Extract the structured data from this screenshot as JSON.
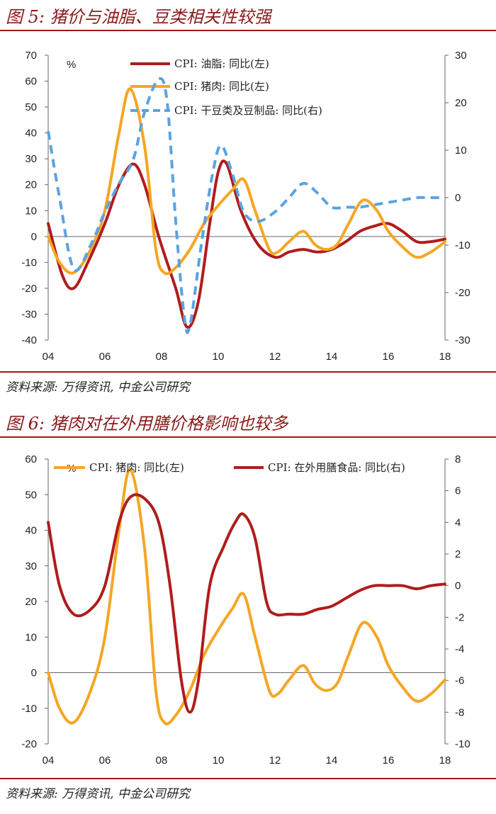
{
  "figures": [
    {
      "title": "图 5: 猪价与油脂、豆类相关性较强",
      "source": "资料来源: 万得资讯, 中金公司研究"
    },
    {
      "title": "图 6: 猪肉对在外用膳价格影响也较多",
      "source": "资料来源: 万得资讯, 中金公司研究"
    }
  ],
  "chart_data": [
    {
      "type": "line",
      "title": "",
      "unit_label": "%",
      "x_ticks": [
        "04",
        "06",
        "08",
        "10",
        "12",
        "14",
        "16",
        "18"
      ],
      "x_range": [
        2004,
        2018
      ],
      "y_left": {
        "range": [
          -40,
          70
        ],
        "ticks": [
          -40,
          -30,
          -20,
          -10,
          0,
          10,
          20,
          30,
          40,
          50,
          60,
          70
        ]
      },
      "y_right": {
        "range": [
          -30,
          30
        ],
        "ticks": [
          -30,
          -20,
          -10,
          0,
          10,
          20,
          30
        ]
      },
      "grid": false,
      "legend_position": "top-center",
      "series": [
        {
          "name": "CPI: 油脂: 同比(左)",
          "axis": "left",
          "color": "#b01c1c",
          "style": "solid",
          "points": [
            [
              2004.0,
              5
            ],
            [
              2004.5,
              -15
            ],
            [
              2004.9,
              -20
            ],
            [
              2005.4,
              -10
            ],
            [
              2006.0,
              5
            ],
            [
              2006.5,
              20
            ],
            [
              2007.0,
              28
            ],
            [
              2007.4,
              20
            ],
            [
              2007.9,
              0
            ],
            [
              2008.5,
              -20
            ],
            [
              2008.9,
              -35
            ],
            [
              2009.3,
              -25
            ],
            [
              2009.7,
              5
            ],
            [
              2010.0,
              25
            ],
            [
              2010.3,
              28
            ],
            [
              2010.8,
              10
            ],
            [
              2011.4,
              -3
            ],
            [
              2012.0,
              -8
            ],
            [
              2012.5,
              -6
            ],
            [
              2013.0,
              -5
            ],
            [
              2013.5,
              -6
            ],
            [
              2014.0,
              -5
            ],
            [
              2014.5,
              -2
            ],
            [
              2015.0,
              2
            ],
            [
              2015.5,
              4
            ],
            [
              2016.0,
              5
            ],
            [
              2016.5,
              2
            ],
            [
              2017.0,
              -2
            ],
            [
              2017.5,
              -2
            ],
            [
              2018.0,
              -1
            ]
          ]
        },
        {
          "name": "CPI: 猪肉: 同比(左)",
          "axis": "left",
          "color": "#f5a623",
          "style": "solid",
          "points": [
            [
              2004.0,
              0
            ],
            [
              2004.4,
              -10
            ],
            [
              2004.9,
              -14
            ],
            [
              2005.5,
              -5
            ],
            [
              2006.0,
              10
            ],
            [
              2006.5,
              40
            ],
            [
              2006.9,
              57
            ],
            [
              2007.4,
              35
            ],
            [
              2007.8,
              -5
            ],
            [
              2008.1,
              -14
            ],
            [
              2008.5,
              -12
            ],
            [
              2009.0,
              -5
            ],
            [
              2009.5,
              5
            ],
            [
              2010.0,
              12
            ],
            [
              2010.5,
              18
            ],
            [
              2010.9,
              22
            ],
            [
              2011.3,
              10
            ],
            [
              2011.8,
              -5
            ],
            [
              2012.1,
              -6
            ],
            [
              2012.5,
              -2
            ],
            [
              2013.0,
              2
            ],
            [
              2013.4,
              -3
            ],
            [
              2013.8,
              -5
            ],
            [
              2014.2,
              -3
            ],
            [
              2014.6,
              5
            ],
            [
              2015.1,
              14
            ],
            [
              2015.6,
              10
            ],
            [
              2016.0,
              2
            ],
            [
              2016.5,
              -4
            ],
            [
              2017.0,
              -8
            ],
            [
              2017.5,
              -6
            ],
            [
              2018.0,
              -2
            ]
          ]
        },
        {
          "name": "CPI: 干豆类及豆制品: 同比(右)",
          "axis": "right",
          "color": "#5ba3e0",
          "style": "dashed",
          "points": [
            [
              2004.0,
              14
            ],
            [
              2004.4,
              0
            ],
            [
              2004.9,
              -15
            ],
            [
              2005.5,
              -10
            ],
            [
              2006.0,
              -3
            ],
            [
              2006.5,
              3
            ],
            [
              2007.0,
              8
            ],
            [
              2007.4,
              18
            ],
            [
              2007.9,
              25
            ],
            [
              2008.2,
              20
            ],
            [
              2008.5,
              -5
            ],
            [
              2008.8,
              -25
            ],
            [
              2009.0,
              -27
            ],
            [
              2009.4,
              -10
            ],
            [
              2009.8,
              5
            ],
            [
              2010.1,
              11
            ],
            [
              2010.5,
              5
            ],
            [
              2010.9,
              -3
            ],
            [
              2011.4,
              -5
            ],
            [
              2012.0,
              -3
            ],
            [
              2012.5,
              0
            ],
            [
              2013.0,
              3
            ],
            [
              2013.5,
              1
            ],
            [
              2014.0,
              -2
            ],
            [
              2014.5,
              -2
            ],
            [
              2015.0,
              -2
            ],
            [
              2015.5,
              -1.5
            ],
            [
              2016.0,
              -1
            ],
            [
              2016.5,
              -0.5
            ],
            [
              2017.0,
              0
            ],
            [
              2017.5,
              0
            ],
            [
              2018.0,
              0
            ]
          ]
        }
      ]
    },
    {
      "type": "line",
      "title": "",
      "unit_label": "%",
      "x_ticks": [
        "04",
        "06",
        "08",
        "10",
        "12",
        "14",
        "16",
        "18"
      ],
      "x_range": [
        2004,
        2018
      ],
      "y_left": {
        "range": [
          -20,
          60
        ],
        "ticks": [
          -20,
          -10,
          0,
          10,
          20,
          30,
          40,
          50,
          60
        ]
      },
      "y_right": {
        "range": [
          -10,
          8
        ],
        "ticks": [
          -10,
          -8,
          -6,
          -4,
          -2,
          0,
          2,
          4,
          6,
          8
        ]
      },
      "grid": false,
      "legend_position": "top",
      "series": [
        {
          "name": "CPI: 猪肉: 同比(左)",
          "axis": "left",
          "color": "#f5a623",
          "style": "solid",
          "points": [
            [
              2004.0,
              0
            ],
            [
              2004.4,
              -10
            ],
            [
              2004.9,
              -14
            ],
            [
              2005.5,
              -5
            ],
            [
              2006.0,
              10
            ],
            [
              2006.5,
              40
            ],
            [
              2006.9,
              57
            ],
            [
              2007.4,
              35
            ],
            [
              2007.8,
              -5
            ],
            [
              2008.1,
              -14
            ],
            [
              2008.5,
              -12
            ],
            [
              2009.0,
              -5
            ],
            [
              2009.5,
              5
            ],
            [
              2010.0,
              12
            ],
            [
              2010.5,
              18
            ],
            [
              2010.9,
              22
            ],
            [
              2011.3,
              10
            ],
            [
              2011.8,
              -5
            ],
            [
              2012.1,
              -6
            ],
            [
              2012.5,
              -2
            ],
            [
              2013.0,
              2
            ],
            [
              2013.4,
              -3
            ],
            [
              2013.8,
              -5
            ],
            [
              2014.2,
              -3
            ],
            [
              2014.6,
              5
            ],
            [
              2015.1,
              14
            ],
            [
              2015.6,
              10
            ],
            [
              2016.0,
              2
            ],
            [
              2016.5,
              -4
            ],
            [
              2017.0,
              -8
            ],
            [
              2017.5,
              -6
            ],
            [
              2018.0,
              -2
            ]
          ]
        },
        {
          "name": "CPI: 在外用膳食品: 同比(右)",
          "axis": "right",
          "color": "#b01c1c",
          "style": "solid",
          "points": [
            [
              2004.0,
              4
            ],
            [
              2004.4,
              0
            ],
            [
              2004.9,
              -1.8
            ],
            [
              2005.5,
              -1.5
            ],
            [
              2006.0,
              0
            ],
            [
              2006.5,
              4
            ],
            [
              2006.9,
              5.6
            ],
            [
              2007.4,
              5.5
            ],
            [
              2007.9,
              4
            ],
            [
              2008.3,
              0
            ],
            [
              2008.7,
              -6
            ],
            [
              2009.0,
              -8
            ],
            [
              2009.3,
              -6
            ],
            [
              2009.7,
              0
            ],
            [
              2010.2,
              2.5
            ],
            [
              2010.6,
              4
            ],
            [
              2010.9,
              4.5
            ],
            [
              2011.3,
              3
            ],
            [
              2011.7,
              -1
            ],
            [
              2012.0,
              -1.8
            ],
            [
              2012.5,
              -1.8
            ],
            [
              2013.0,
              -1.8
            ],
            [
              2013.5,
              -1.5
            ],
            [
              2014.0,
              -1.3
            ],
            [
              2014.5,
              -0.8
            ],
            [
              2015.0,
              -0.3
            ],
            [
              2015.5,
              0
            ],
            [
              2016.0,
              0
            ],
            [
              2016.5,
              0
            ],
            [
              2017.0,
              -0.2
            ],
            [
              2017.5,
              0
            ],
            [
              2018.0,
              0.1
            ]
          ]
        }
      ]
    }
  ]
}
